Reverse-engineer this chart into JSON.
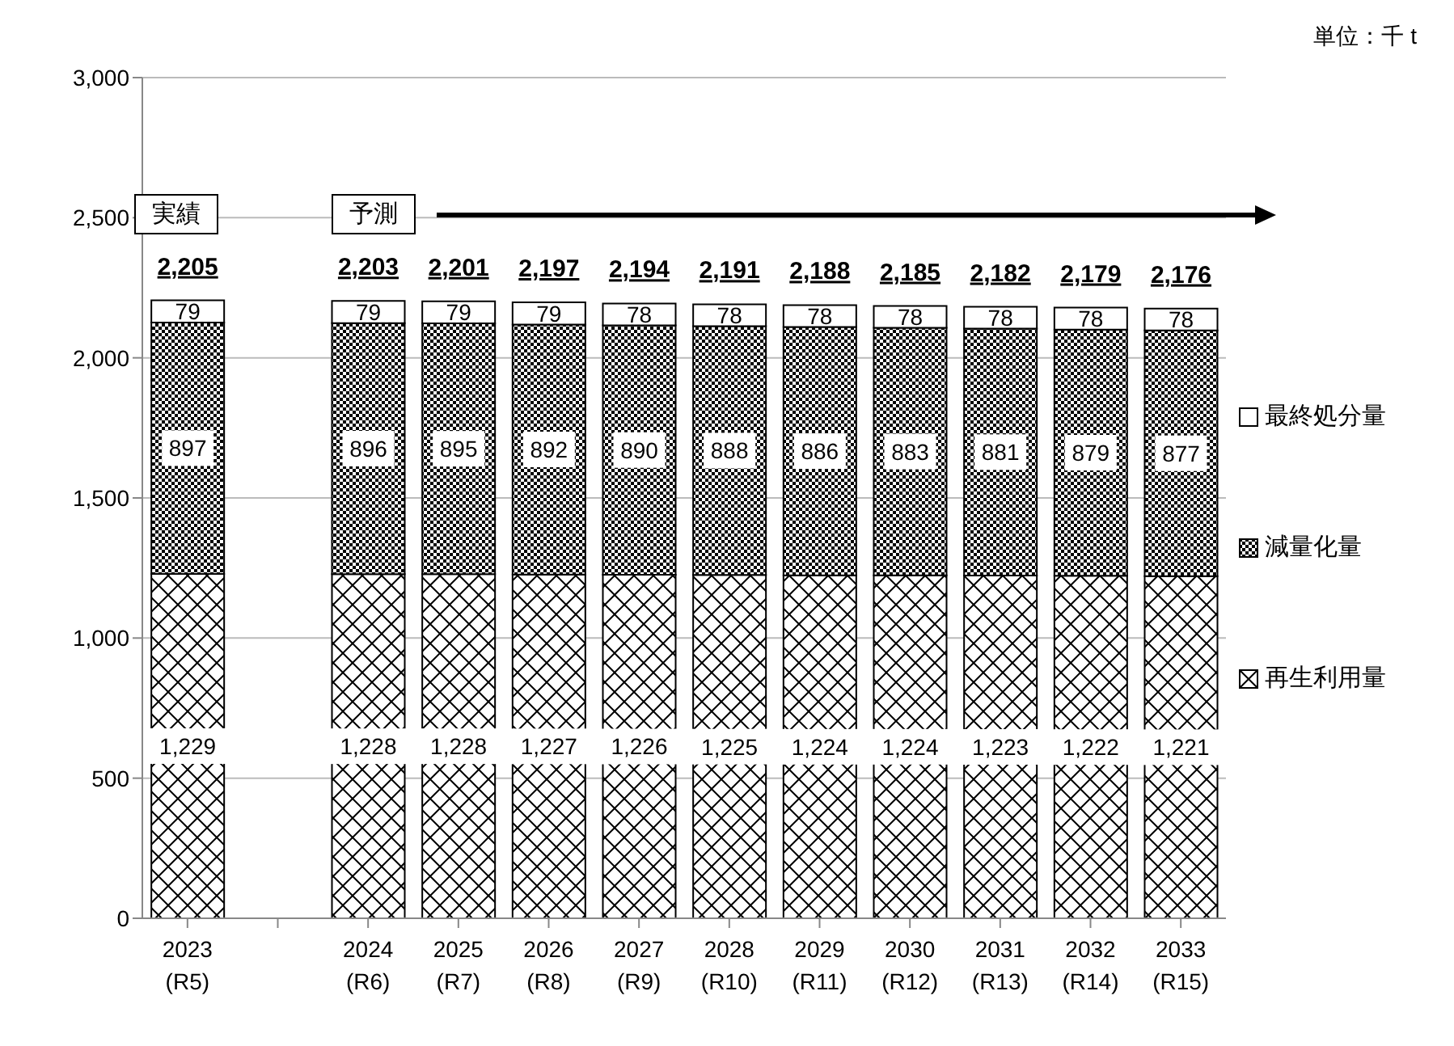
{
  "chart_data": {
    "type": "bar",
    "stacked": true,
    "categories": [
      "2023\n(R5)",
      null,
      "2024\n(R6)",
      "2025\n(R7)",
      "2026\n(R8)",
      "2027\n(R9)",
      "2028\n(R10)",
      "2029\n(R11)",
      "2030\n(R12)",
      "2031\n(R13)",
      "2032\n(R14)",
      "2033\n(R15)"
    ],
    "series": [
      {
        "name": "再生利用量",
        "color": "#000000",
        "values": [
          1229,
          null,
          1228,
          1228,
          1227,
          1226,
          1225,
          1224,
          1224,
          1223,
          1222,
          1221
        ],
        "value_labels": [
          "1,229",
          null,
          "1,228",
          "1,228",
          "1,227",
          "1,226",
          "1,225",
          "1,224",
          "1,224",
          "1,223",
          "1,222",
          "1,221"
        ]
      },
      {
        "name": "減量化量",
        "color": "#000000",
        "values": [
          897,
          null,
          896,
          895,
          892,
          890,
          888,
          886,
          883,
          881,
          879,
          877
        ]
      },
      {
        "name": "最終処分量",
        "color": "#ffffff",
        "values": [
          79,
          null,
          79,
          79,
          79,
          78,
          78,
          78,
          78,
          78,
          78,
          78
        ]
      }
    ],
    "totals": [
      "2,205",
      null,
      "2,203",
      "2,201",
      "2,197",
      "2,194",
      "2,191",
      "2,188",
      "2,185",
      "2,182",
      "2,179",
      "2,176"
    ],
    "data_labels": true,
    "ylim": [
      0,
      3000
    ],
    "yticks": [
      {
        "value": 0,
        "label": "0"
      },
      {
        "value": 500,
        "label": "500"
      },
      {
        "value": 1000,
        "label": "1,000"
      },
      {
        "value": 1500,
        "label": "1,500"
      },
      {
        "value": 2000,
        "label": "2,000"
      },
      {
        "value": 2500,
        "label": "2,500"
      },
      {
        "value": 3000,
        "label": "3,000"
      }
    ],
    "grid": "y",
    "legend": "right",
    "annotations": [
      "単位：千 t",
      "実績",
      "予測"
    ]
  }
}
